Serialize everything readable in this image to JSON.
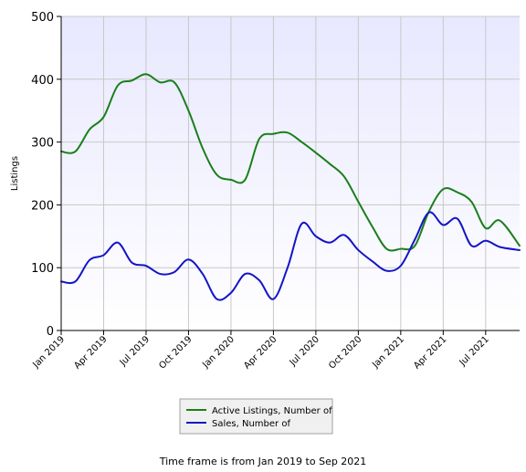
{
  "chart_data": {
    "type": "line",
    "title": "",
    "xlabel": "",
    "ylabel": "Listings",
    "ylim": [
      0,
      500
    ],
    "yticks": [
      0,
      100,
      200,
      300,
      400,
      500
    ],
    "xlim": [
      0,
      32.4
    ],
    "x_tick_labels": [
      "Jan 2019",
      "Apr 2019",
      "Jul 2019",
      "Oct 2019",
      "Jan 2020",
      "Apr 2020",
      "Jul 2020",
      "Oct 2020",
      "Jan 2021",
      "Apr 2021",
      "Jul 2021"
    ],
    "x_tick_months": [
      0,
      3,
      6,
      9,
      12,
      15,
      18,
      21,
      24,
      27,
      30
    ],
    "grid": true,
    "legend_position": "bottom-center",
    "series": [
      {
        "name": "Active Listings, Number of",
        "color": "#1a7f1a",
        "x": [
          0,
          1,
          2,
          3,
          4,
          5,
          6,
          7,
          8,
          9,
          10,
          11,
          12,
          13,
          14,
          15,
          16,
          17,
          18,
          19,
          20,
          21,
          22,
          23,
          24,
          25,
          26,
          27,
          28,
          29,
          30,
          31,
          32.4
        ],
        "values": [
          285,
          285,
          320,
          340,
          390,
          398,
          408,
          395,
          395,
          350,
          290,
          248,
          240,
          240,
          305,
          313,
          315,
          300,
          283,
          265,
          245,
          205,
          165,
          130,
          130,
          135,
          190,
          225,
          220,
          205,
          163,
          175,
          135
        ]
      },
      {
        "name": "Sales, Number of",
        "color": "#1414c8",
        "x": [
          0,
          1,
          2,
          3,
          4,
          5,
          6,
          7,
          8,
          9,
          10,
          11,
          12,
          13,
          14,
          15,
          16,
          17,
          18,
          19,
          20,
          21,
          22,
          23,
          24,
          25,
          26,
          27,
          28,
          29,
          30,
          31,
          32.4
        ],
        "values": [
          78,
          78,
          112,
          120,
          140,
          108,
          103,
          90,
          93,
          113,
          90,
          50,
          60,
          90,
          80,
          50,
          100,
          170,
          150,
          140,
          152,
          128,
          110,
          95,
          103,
          145,
          188,
          168,
          178,
          135,
          143,
          133,
          128
        ]
      }
    ]
  },
  "footer": {
    "note": "Time frame is from Jan 2019 to Sep 2021"
  }
}
